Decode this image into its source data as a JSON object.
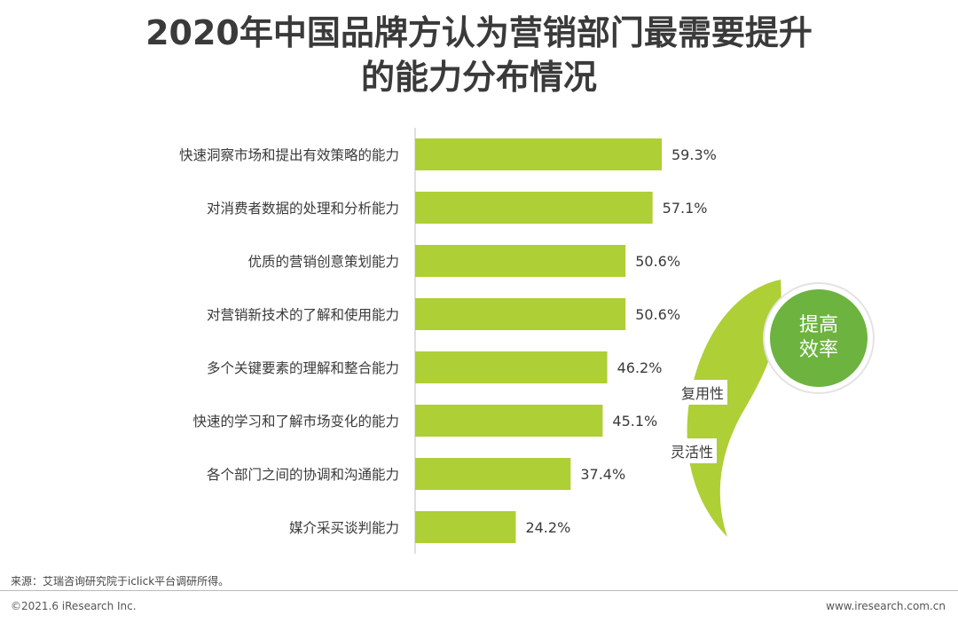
{
  "chart_data": {
    "type": "bar",
    "orientation": "horizontal",
    "title_line1": "2020年中国品牌方认为营销部门最需要提升",
    "title_line2": "的能力分布情况",
    "categories": [
      "快速洞察市场和提出有效策略的能力",
      "对消费者数据的处理和分析能力",
      "优质的营销创意策划能力",
      "对营销新技术的了解和使用能力",
      "多个关键要素的理解和整合能力",
      "快速的学习和了解市场变化的能力",
      "各个部门之间的协调和沟通能力",
      "媒介采买谈判能力"
    ],
    "values": [
      59.3,
      57.1,
      50.6,
      50.6,
      46.2,
      45.1,
      37.4,
      24.2
    ],
    "value_labels": [
      "59.3%",
      "57.1%",
      "50.6%",
      "50.6%",
      "46.2%",
      "45.1%",
      "37.4%",
      "24.2%"
    ],
    "xlim": [
      0,
      100
    ],
    "grid": false,
    "bar_color": "#aecf35"
  },
  "callout": {
    "circle_line1": "提高",
    "circle_line2": "效率",
    "label1": "复用性",
    "label2": "灵活性",
    "circle_color": "#6db33f",
    "arc_color": "#aecf35"
  },
  "footer": {
    "source": "来源：艾瑞咨询研究院于iclick平台调研所得。",
    "copyright": "©2021.6 iResearch Inc.",
    "website": "www.iresearch.com.cn"
  }
}
